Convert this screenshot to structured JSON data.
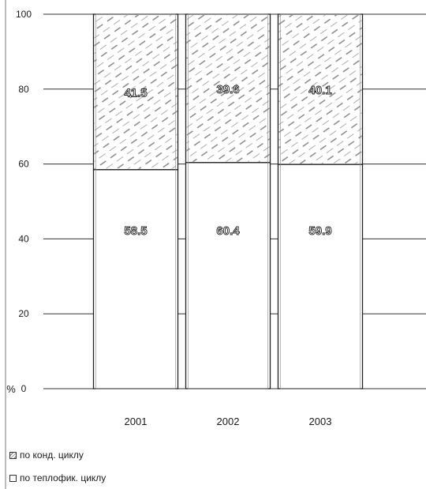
{
  "chart_data": {
    "type": "bar",
    "stacked": true,
    "categories": [
      "2001",
      "2002",
      "2003"
    ],
    "series": [
      {
        "name": "по теплофик. циклу",
        "values": [
          58.5,
          60.4,
          59.9
        ],
        "pattern": "plain"
      },
      {
        "name": "по конд. циклу",
        "values": [
          41.5,
          39.6,
          40.1
        ],
        "pattern": "hatched"
      }
    ],
    "value_labels": {
      "bottom": [
        "58.5",
        "60.4",
        "59.9"
      ],
      "top": [
        "41.5",
        "39.6",
        "40.1"
      ]
    },
    "ylim": [
      0,
      100
    ],
    "yticks": [
      "0",
      "20",
      "40",
      "60",
      "80",
      "100"
    ],
    "ylabel": "%",
    "grid": true,
    "legend_placement": "bottom-left",
    "colors": {
      "bar_fill": "#ffffff",
      "stroke": "#222222",
      "hatch": "#555555"
    }
  },
  "legend": {
    "items": [
      {
        "label": "по конд. циклу",
        "pattern": "hatched"
      },
      {
        "label": "по теплофик. циклу",
        "pattern": "plain"
      }
    ]
  }
}
